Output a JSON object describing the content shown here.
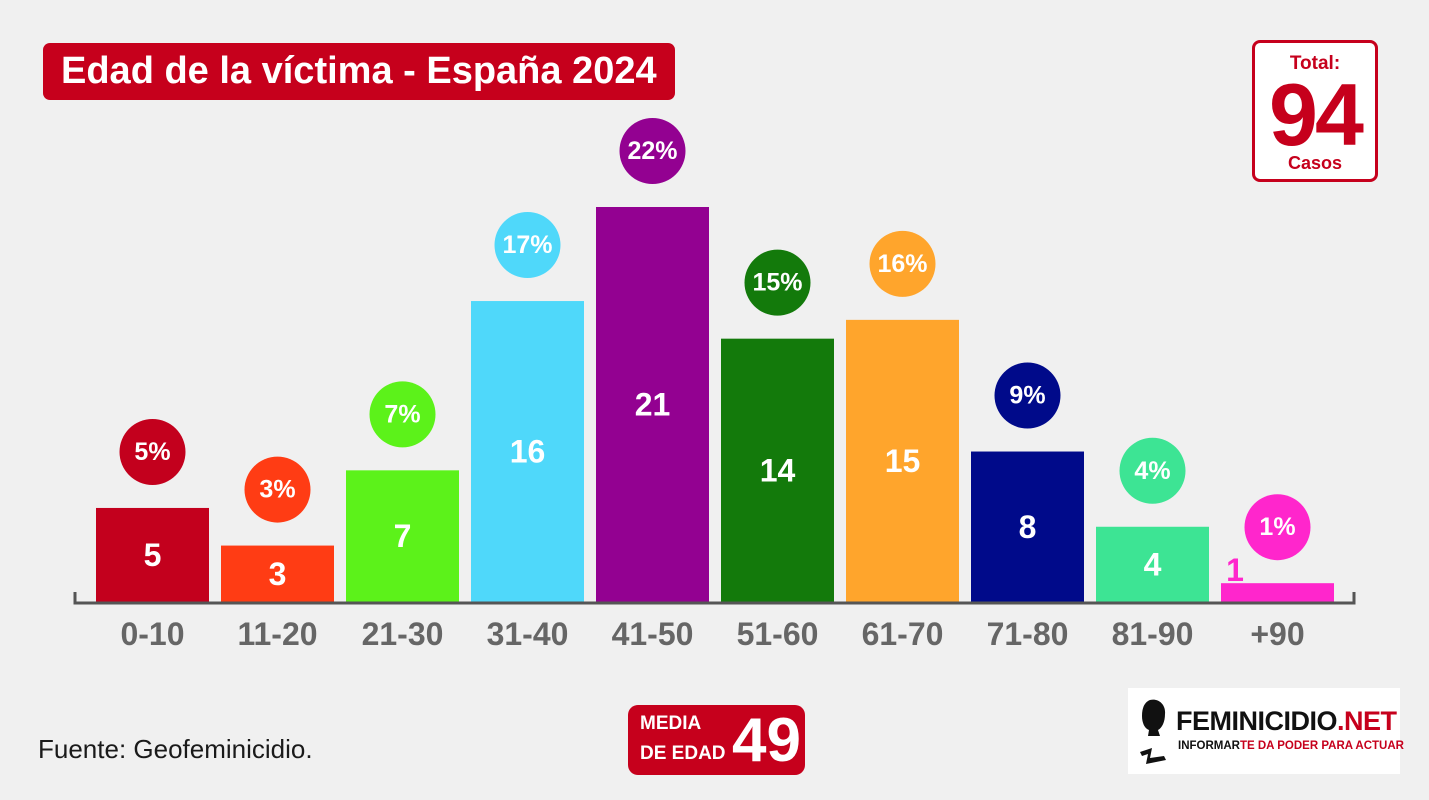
{
  "title": "Edad de la víctima - España 2024",
  "total": {
    "label": "Total:",
    "value": "94",
    "unit": "Casos"
  },
  "source": "Fuente: Geofeminicidio.",
  "media": {
    "line1": "MEDIA",
    "line2": "DE EDAD",
    "value": "49"
  },
  "logo": {
    "name_main": "FEMINICIDIO",
    "name_suffix": ".NET",
    "slogan_part1": "INFORMAR",
    "slogan_part2": "TE DA PODER PARA ACTUAR"
  },
  "colors": {
    "brand_red": "#c6001c",
    "background": "#f0f0f0",
    "axis": "#555555",
    "tick_label": "#666666"
  },
  "chart_data": {
    "type": "bar",
    "title": "Edad de la víctima - España 2024",
    "xlabel": "",
    "ylabel": "",
    "ylim": [
      0,
      21
    ],
    "grid": false,
    "categories": [
      "0-10",
      "11-20",
      "21-30",
      "31-40",
      "41-50",
      "51-60",
      "61-70",
      "71-80",
      "81-90",
      "+90"
    ],
    "values": [
      5,
      3,
      7,
      16,
      21,
      14,
      15,
      8,
      4,
      1
    ],
    "percent_labels": [
      "5%",
      "3%",
      "7%",
      "17%",
      "22%",
      "15%",
      "16%",
      "9%",
      "4%",
      "1%"
    ],
    "bar_colors": [
      "#c3001d",
      "#ff3c14",
      "#5cf21a",
      "#4fd8fa",
      "#930191",
      "#137a0b",
      "#ffa52c",
      "#000a8a",
      "#3de494",
      "#ff26cc"
    ]
  }
}
